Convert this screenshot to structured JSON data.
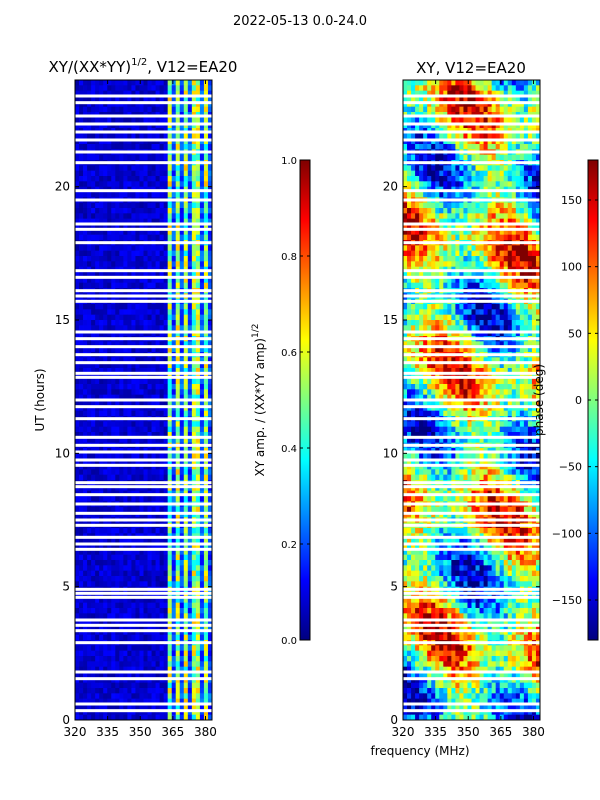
{
  "suptitle": "2022-05-13 0.0-24.0",
  "colors": {
    "jet": [
      "#00007f",
      "#0000ff",
      "#007fff",
      "#00ffff",
      "#7fff7f",
      "#ffff00",
      "#ff7f00",
      "#ff0000",
      "#7f0000"
    ]
  },
  "chart_data": [
    {
      "type": "heatmap",
      "id": "amp",
      "title_main": "XY/(XX*YY)",
      "title_exp": "1/2",
      "title_suffix": ", V12=EA20",
      "xlabel": "",
      "ylabel": "UT (hours)",
      "xlim": [
        320,
        383
      ],
      "ylim": [
        0,
        24
      ],
      "xticks": [
        320,
        335,
        350,
        365,
        380
      ],
      "yticks": [
        0,
        5,
        10,
        15,
        20
      ],
      "bright_band_mhz": [
        363,
        383
      ],
      "colorbar": {
        "label_main": "XY amp. / (XX*YY amp)",
        "label_exp": "1/2",
        "range": [
          0.0,
          1.0
        ],
        "ticks": [
          0.0,
          0.2,
          0.4,
          0.6,
          0.8,
          1.0
        ],
        "tick_labels": [
          "0.0",
          "0.2",
          "0.4",
          "0.6",
          "0.8",
          "1.0"
        ]
      }
    },
    {
      "type": "heatmap",
      "id": "phase",
      "title_main": "XY, V12=EA20",
      "xlabel": "frequency (MHz)",
      "ylabel": "",
      "xlim": [
        320,
        383
      ],
      "ylim": [
        0,
        24
      ],
      "xticks": [
        320,
        335,
        350,
        365,
        380
      ],
      "yticks": [
        0,
        5,
        10,
        15,
        20
      ],
      "colorbar": {
        "label_main": "phase (deg)",
        "range": [
          -180,
          180
        ],
        "ticks": [
          -150,
          -100,
          -50,
          0,
          50,
          100,
          150
        ],
        "tick_labels": [
          "−150",
          "−100",
          "−50",
          "0",
          "50",
          "100",
          "150"
        ]
      }
    }
  ],
  "flagged_hours": [
    0.35,
    0.6,
    1.55,
    1.8,
    2.9,
    3.35,
    3.55,
    3.75,
    4.6,
    4.75,
    4.9,
    6.4,
    6.6,
    6.85,
    7.3,
    7.5,
    7.75,
    8.1,
    8.45,
    8.75,
    8.9,
    9.55,
    9.75,
    10.05,
    10.3,
    10.6,
    11.3,
    11.75,
    12.0,
    12.85,
    13.0,
    13.4,
    13.7,
    14.0,
    14.3,
    14.55,
    15.7,
    15.9,
    16.1,
    16.6,
    16.85,
    17.9,
    18.4,
    18.6,
    19.5,
    19.85,
    20.9,
    21.3,
    21.75,
    22.05,
    22.35,
    22.65,
    23.15,
    23.4
  ]
}
